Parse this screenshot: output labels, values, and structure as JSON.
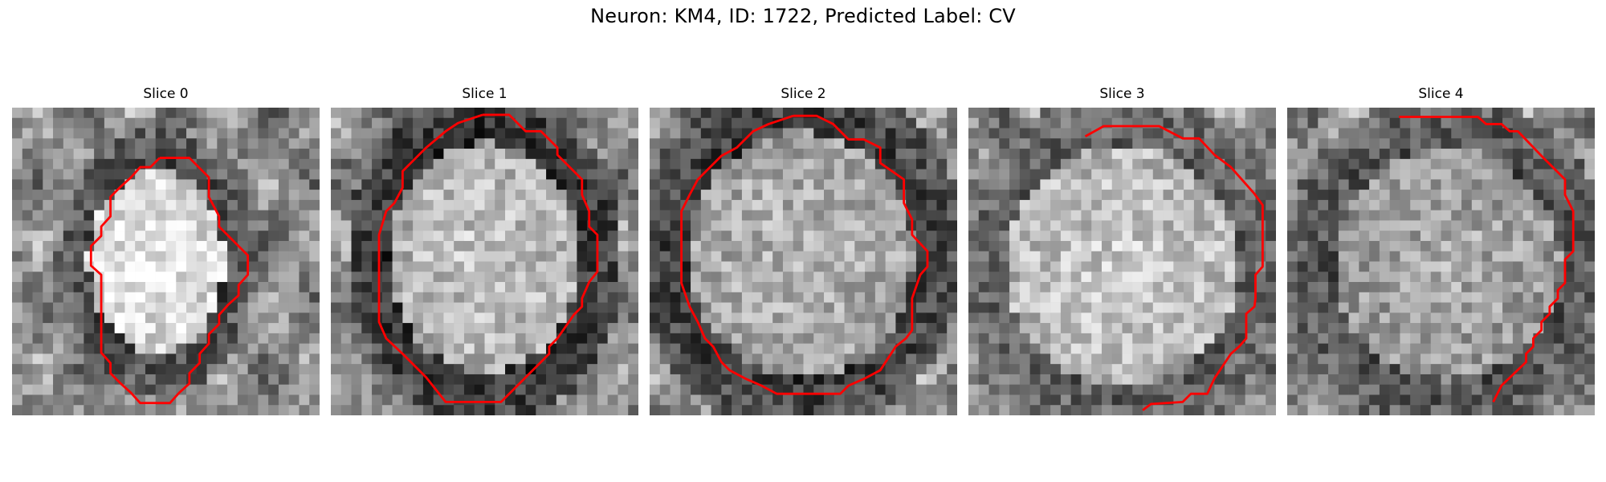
{
  "figure": {
    "title": "Neuron: KM4, ID: 1722, Predicted Label: CV",
    "contour_color": "#ff0000",
    "colormap": "gray",
    "axes_visible": false,
    "panels": [
      {
        "title": "Slice 0",
        "center": [
          0.47,
          0.5
        ],
        "radius": [
          0.26,
          0.35
        ],
        "core": 0.92,
        "ring": 0.28
      },
      {
        "title": "Slice 1",
        "center": [
          0.5,
          0.49
        ],
        "radius": [
          0.36,
          0.44
        ],
        "core": 0.78,
        "ring": 0.18
      },
      {
        "title": "Slice 2",
        "center": [
          0.49,
          0.48
        ],
        "radius": [
          0.43,
          0.47
        ],
        "core": 0.72,
        "ring": 0.22
      },
      {
        "title": "Slice 3",
        "center": [
          0.5,
          0.52
        ],
        "radius": [
          0.45,
          0.46
        ],
        "core": 0.8,
        "ring": 0.35
      },
      {
        "title": "Slice 4",
        "center": [
          0.52,
          0.51
        ],
        "radius": [
          0.43,
          0.44
        ],
        "core": 0.68,
        "ring": 0.3
      }
    ]
  }
}
